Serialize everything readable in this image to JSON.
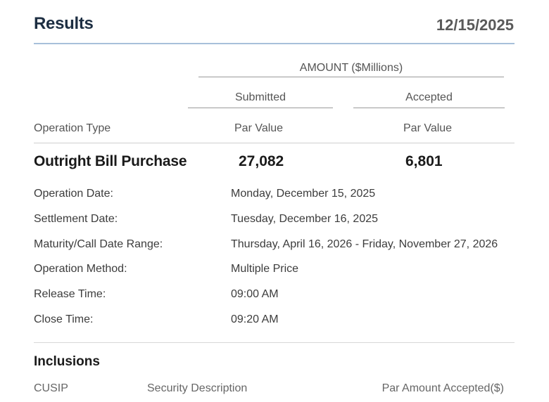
{
  "header": {
    "title": "Results",
    "date": "12/15/2025"
  },
  "table": {
    "amount_label": "AMOUNT ($Millions)",
    "submitted_label": "Submitted",
    "accepted_label": "Accepted",
    "operation_type_label": "Operation Type",
    "par_value_label_submitted": "Par Value",
    "par_value_label_accepted": "Par Value",
    "operation_name": "Outright Bill Purchase",
    "submitted_value": "27,082",
    "accepted_value": "6,801"
  },
  "details": [
    {
      "label": "Operation Date:",
      "value": "Monday, December 15, 2025"
    },
    {
      "label": "Settlement Date:",
      "value": "Tuesday, December 16, 2025"
    },
    {
      "label": "Maturity/Call Date Range:",
      "value": "Thursday, April 16, 2026 - Friday, November 27, 2026"
    },
    {
      "label": "Operation Method:",
      "value": "Multiple Price"
    },
    {
      "label": "Release Time:",
      "value": "09:00 AM"
    },
    {
      "label": "Close Time:",
      "value": "09:20 AM"
    }
  ],
  "inclusions": {
    "title": "Inclusions",
    "columns": [
      "CUSIP",
      "Security Description",
      "Par Amount Accepted($)"
    ]
  },
  "colors": {
    "title": "#1d2e42",
    "accent_rule": "#a7c0da"
  }
}
